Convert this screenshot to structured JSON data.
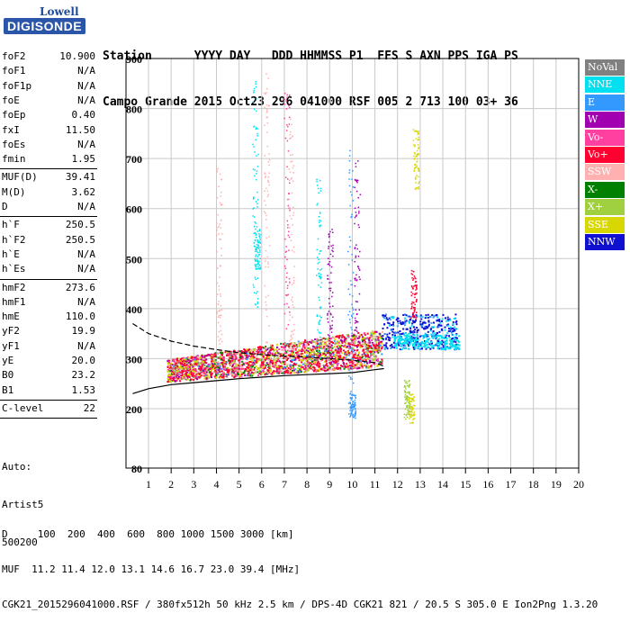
{
  "logo": {
    "brand": "Lowell",
    "product": "DIGISONDE"
  },
  "header": {
    "line1": "Station      YYYY DAY   DDD HHMMSS P1  FFS S AXN PPS IGA PS",
    "line2": "Campo Grande 2015 Oct23 296 041000 RSF 005 2 713 100 03+ 36"
  },
  "params_group1": [
    {
      "name": "foF2",
      "value": "10.900"
    },
    {
      "name": "foF1",
      "value": "N/A"
    },
    {
      "name": "foF1p",
      "value": "N/A"
    },
    {
      "name": "foE",
      "value": "N/A"
    },
    {
      "name": "foEp",
      "value": "0.40"
    },
    {
      "name": "fxI",
      "value": "11.50"
    },
    {
      "name": "foEs",
      "value": "N/A"
    },
    {
      "name": "fmin",
      "value": "1.95"
    }
  ],
  "params_group2": [
    {
      "name": "MUF(D)",
      "value": "39.41"
    },
    {
      "name": "M(D)",
      "value": "3.62"
    },
    {
      "name": "D",
      "value": "N/A"
    }
  ],
  "params_group3": [
    {
      "name": "h`F",
      "value": "250.5"
    },
    {
      "name": "h`F2",
      "value": "250.5"
    },
    {
      "name": "h`E",
      "value": "N/A"
    },
    {
      "name": "h`Es",
      "value": "N/A"
    }
  ],
  "params_group4": [
    {
      "name": "hmF2",
      "value": "273.6"
    },
    {
      "name": "hmF1",
      "value": "N/A"
    },
    {
      "name": "hmE",
      "value": "110.0"
    },
    {
      "name": "yF2",
      "value": "19.9"
    },
    {
      "name": "yF1",
      "value": "N/A"
    },
    {
      "name": "yE",
      "value": "20.0"
    },
    {
      "name": "B0",
      "value": "23.2"
    },
    {
      "name": "B1",
      "value": "1.53"
    }
  ],
  "clevel": {
    "name": "C-level",
    "value": "22"
  },
  "auto": {
    "line1": "Auto:",
    "line2": "Artist5",
    "line3": "500200"
  },
  "legend": [
    {
      "label": "NoVal",
      "color": "#808080"
    },
    {
      "label": "NNE",
      "color": "#00e0f0"
    },
    {
      "label": "E",
      "color": "#3399ff"
    },
    {
      "label": "W",
      "color": "#a000b0"
    },
    {
      "label": "Vo-",
      "color": "#ff40a0"
    },
    {
      "label": "Vo+",
      "color": "#ff0030"
    },
    {
      "label": "SSW",
      "color": "#ffb0b0"
    },
    {
      "label": "X-",
      "color": "#008000"
    },
    {
      "label": "X+",
      "color": "#a0d040"
    },
    {
      "label": "SSE",
      "color": "#d8d800"
    },
    {
      "label": "NNW",
      "color": "#1010d0"
    }
  ],
  "footer": {
    "line1": "D     100  200  400  600  800 1000 1500 3000 [km]",
    "line2": "MUF  11.2 11.4 12.0 13.1 14.6 16.7 23.0 39.4 [MHz]",
    "line3": "CGK21_2015296041000.RSF / 380fx512h 50 kHz 2.5 km / DPS-4D CGK21 821 / 20.5 S 305.0 E Ion2Png 1.3.20"
  },
  "chart_data": {
    "type": "scatter",
    "x_ticks": [
      1,
      2,
      3,
      4,
      5,
      6,
      7,
      8,
      9,
      10,
      11,
      12,
      13,
      14,
      15,
      16,
      17,
      18,
      19,
      20
    ],
    "y_ticks": [
      80,
      200,
      300,
      400,
      500,
      600,
      700,
      800,
      900
    ],
    "xlim": [
      1,
      20
    ],
    "ylim": [
      80,
      900
    ],
    "grid": true,
    "legend_position": "right",
    "profile_upper": [
      [
        0.3,
        370
      ],
      [
        1,
        350
      ],
      [
        2,
        335
      ],
      [
        3,
        325
      ],
      [
        4,
        318
      ],
      [
        5,
        312
      ],
      [
        6,
        308
      ],
      [
        7,
        305
      ],
      [
        8,
        303
      ],
      [
        9,
        300
      ],
      [
        10,
        297
      ],
      [
        11,
        292
      ],
      [
        11.4,
        285
      ]
    ],
    "profile_lower": [
      [
        0.3,
        230
      ],
      [
        1,
        240
      ],
      [
        2,
        248
      ],
      [
        3,
        252
      ],
      [
        4,
        256
      ],
      [
        5,
        260
      ],
      [
        6,
        263
      ],
      [
        7,
        266
      ],
      [
        8,
        268
      ],
      [
        9,
        270
      ],
      [
        10,
        272
      ],
      [
        10.5,
        275
      ],
      [
        11,
        278
      ],
      [
        11.4,
        280
      ]
    ],
    "trace_band": {
      "x_start": 1.8,
      "x_end": 11.3,
      "h_start": [
        255,
        300
      ],
      "h_end": [
        285,
        360
      ]
    },
    "f_extension": {
      "x_start": 11.3,
      "x_end": 14.6,
      "h_start": [
        320,
        390
      ],
      "h_end": [
        320,
        390
      ]
    }
  }
}
